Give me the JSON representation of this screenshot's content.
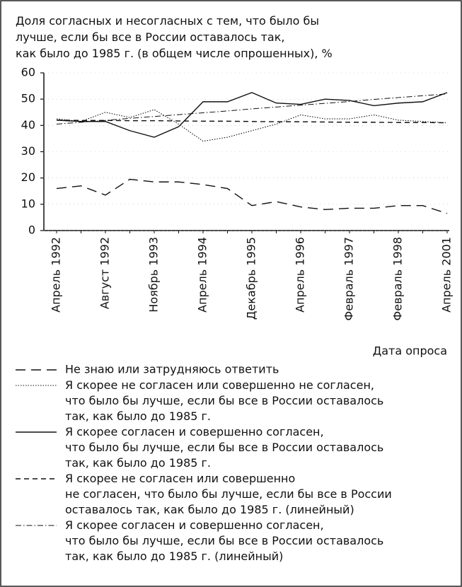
{
  "chart_data": {
    "type": "line",
    "title": "Доля согласных и несогласных с тем, что было бы\nлучше, если бы все в России оставалось так,\nкак было до 1985 г. (в общем числе опрошенных), %",
    "x_label": "Дата опроса",
    "categories": [
      "Апрель 1992",
      null,
      "Август 1992",
      null,
      "Ноябрь 1993",
      null,
      "Апрель 1994",
      null,
      "Декабрь 1995",
      null,
      "Апрель 1996",
      null,
      "Февраль 1997",
      null,
      "Февраль 1998",
      null,
      "Апрель 2001"
    ],
    "ylim": [
      0,
      60
    ],
    "yticks": [
      0,
      10,
      20,
      30,
      40,
      50,
      60
    ],
    "grid": true,
    "series": [
      {
        "name": "Не знаю или затрудняюсь ответить",
        "color": "#111",
        "style": "longdash",
        "values": [
          16,
          17,
          13.5,
          19.5,
          18.5,
          18.5,
          17.5,
          16,
          9.5,
          11,
          9,
          8,
          8.5,
          8.5,
          9.5,
          9.5,
          6.5
        ]
      },
      {
        "name": "Я скорее не согласен или совершенно не согласен,\nчто было бы лучше, если бы все в России оставалось\nтак, как было до 1985 г.",
        "color": "#111",
        "style": "dotted",
        "values": [
          42.5,
          41.5,
          45,
          43,
          46,
          40.5,
          34,
          35.5,
          38,
          40.5,
          44,
          42.5,
          42.5,
          44,
          42,
          41.5,
          41
        ]
      },
      {
        "name": "Я скорее согласен и совершенно согласен,\nчто было бы лучше, если бы все в России оставалось\nтак, как было до 1985 г.",
        "color": "#111",
        "style": "solid",
        "values": [
          42,
          41.5,
          41.5,
          38,
          35.5,
          39.5,
          49,
          49,
          52.5,
          48.5,
          48,
          50,
          49.5,
          47.5,
          48.5,
          49,
          52.5
        ]
      },
      {
        "name": "Я скорее не согласен или совершенно\nне согласен, что было бы лучше, если бы все в России\nоставалось так, как было до 1985 г. (линейный)",
        "color": "#111",
        "style": "dash",
        "values": [
          42,
          41.9,
          41.9,
          41.8,
          41.8,
          41.7,
          41.6,
          41.6,
          41.5,
          41.4,
          41.4,
          41.3,
          41.2,
          41.2,
          41.1,
          41.1,
          41
        ]
      },
      {
        "name": "Я скорее согласен и совершенно согласен,\nчто было бы лучше, если бы все в России оставалось\nтак, как было до 1985 г. (линейный)",
        "color": "#111",
        "style": "dashdot",
        "values": [
          40.5,
          41.2,
          41.9,
          42.7,
          43.4,
          44.1,
          44.8,
          45.5,
          46.3,
          47,
          47.7,
          48.4,
          49.1,
          49.9,
          50.6,
          51.3,
          52
        ]
      }
    ]
  }
}
